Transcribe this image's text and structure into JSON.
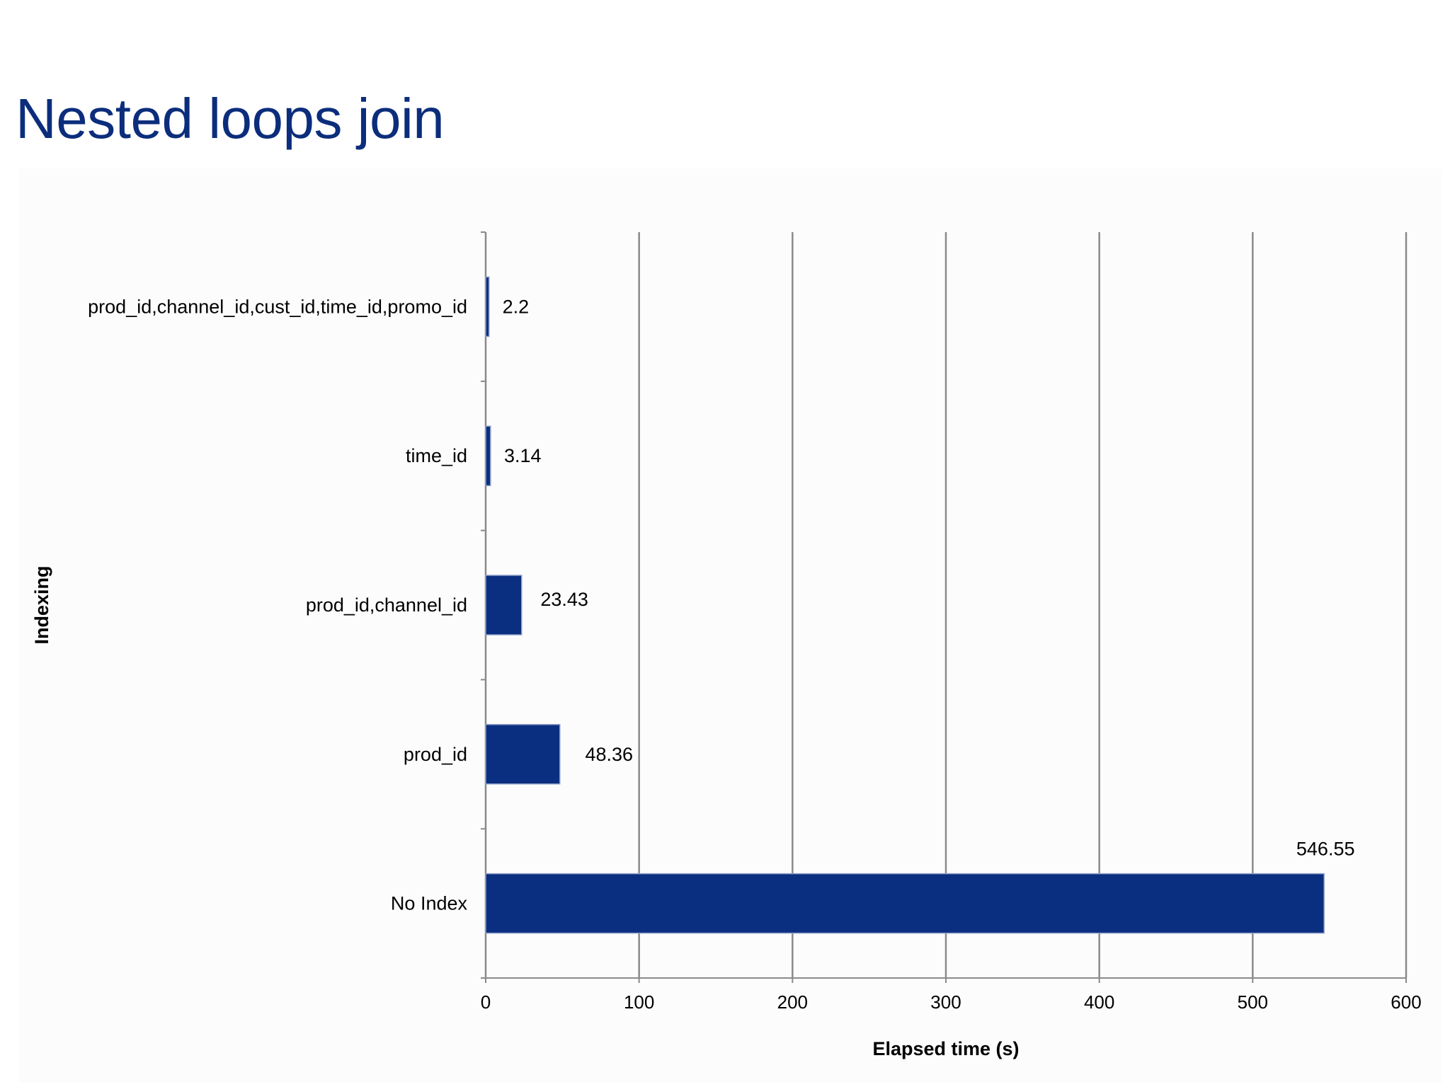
{
  "slide": {
    "title": "Nested loops join"
  },
  "chart_data": {
    "type": "bar",
    "orientation": "horizontal",
    "title": "",
    "xlabel": "Elapsed time (s)",
    "ylabel": "Indexing",
    "categories": [
      "prod_id,channel_id,cust_id,time_id,promo_id",
      "time_id",
      "prod_id,channel_id",
      "prod_id",
      "No Index"
    ],
    "values": [
      2.2,
      3.14,
      23.43,
      48.36,
      546.55
    ],
    "data_labels": [
      "2.2",
      "3.14",
      "23.43",
      "48.36",
      "546.55"
    ],
    "xlim": [
      0,
      600
    ],
    "xticks": [
      "0",
      "100",
      "200",
      "300",
      "400",
      "500",
      "600"
    ],
    "grid": "vertical",
    "legend": "none",
    "colors": {
      "bar": "#0b2f80",
      "bar_edge": "#8fa0c9",
      "grid": "#8a8a8a",
      "title": "#0b2d7c"
    }
  }
}
